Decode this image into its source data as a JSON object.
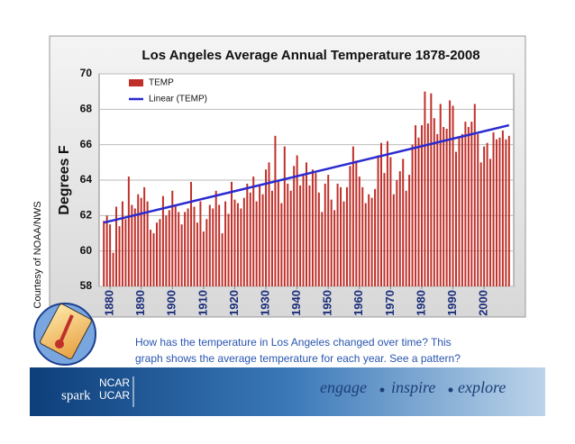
{
  "chart_data": {
    "type": "bar",
    "title": "Los Angeles Average Annual Temperature 1878-2008",
    "y_label": "Degrees F",
    "x": [
      1878,
      1879,
      1880,
      1881,
      1882,
      1883,
      1884,
      1885,
      1886,
      1887,
      1888,
      1889,
      1890,
      1891,
      1892,
      1893,
      1894,
      1895,
      1896,
      1897,
      1898,
      1899,
      1900,
      1901,
      1902,
      1903,
      1904,
      1905,
      1906,
      1907,
      1908,
      1909,
      1910,
      1911,
      1912,
      1913,
      1914,
      1915,
      1916,
      1917,
      1918,
      1919,
      1920,
      1921,
      1922,
      1923,
      1924,
      1925,
      1926,
      1927,
      1928,
      1929,
      1930,
      1931,
      1932,
      1933,
      1934,
      1935,
      1936,
      1937,
      1938,
      1939,
      1940,
      1941,
      1942,
      1943,
      1944,
      1945,
      1946,
      1947,
      1948,
      1949,
      1950,
      1951,
      1952,
      1953,
      1954,
      1955,
      1956,
      1957,
      1958,
      1959,
      1960,
      1961,
      1962,
      1963,
      1964,
      1965,
      1966,
      1967,
      1968,
      1969,
      1970,
      1971,
      1972,
      1973,
      1974,
      1975,
      1976,
      1977,
      1978,
      1979,
      1980,
      1981,
      1982,
      1983,
      1984,
      1985,
      1986,
      1987,
      1988,
      1989,
      1990,
      1991,
      1992,
      1993,
      1994,
      1995,
      1996,
      1997,
      1998,
      1999,
      2000,
      2001,
      2002,
      2003,
      2004,
      2005,
      2006,
      2007,
      2008
    ],
    "series": [
      {
        "name": "TEMP",
        "color": "#c0302a",
        "values": [
          61.7,
          62.0,
          61.5,
          59.9,
          62.5,
          61.4,
          62.8,
          61.8,
          64.2,
          62.6,
          62.4,
          63.2,
          63.0,
          63.6,
          62.8,
          61.2,
          61.0,
          61.6,
          61.8,
          63.1,
          62.0,
          62.3,
          63.4,
          62.6,
          62.2,
          61.5,
          62.2,
          62.4,
          63.9,
          62.5,
          61.6,
          62.8,
          61.1,
          61.8,
          62.6,
          62.4,
          63.4,
          62.6,
          61.0,
          62.8,
          62.1,
          63.9,
          62.9,
          62.7,
          62.4,
          63.0,
          63.8,
          63.3,
          64.2,
          62.8,
          63.7,
          63.2,
          64.6,
          65.0,
          63.4,
          66.5,
          64.0,
          62.7,
          65.9,
          63.8,
          63.4,
          64.8,
          65.4,
          63.7,
          64.3,
          65.0,
          63.7,
          64.6,
          64.4,
          63.3,
          62.2,
          63.8,
          64.3,
          62.9,
          62.3,
          63.8,
          63.6,
          62.8,
          63.6,
          64.8,
          65.9,
          65.1,
          64.2,
          63.6,
          62.7,
          63.2,
          63.0,
          63.5,
          65.4,
          66.1,
          64.4,
          66.2,
          65.3,
          63.2,
          64.0,
          64.5,
          65.2,
          63.4,
          64.3,
          66.0,
          67.1,
          66.4,
          67.1,
          69.0,
          67.2,
          68.9,
          67.5,
          66.6,
          68.3,
          67.0,
          66.9,
          68.5,
          68.2,
          65.6,
          66.4,
          66.6,
          67.3,
          67.0,
          67.3,
          68.3,
          66.6,
          65.0,
          65.9,
          66.1,
          65.2,
          66.7,
          66.3,
          66.4,
          66.8,
          66.3,
          66.5
        ]
      }
    ],
    "trend": {
      "name": "Linear (TEMP)",
      "color": "#2a2ad0",
      "x": [
        1878,
        2008
      ],
      "values": [
        61.6,
        67.1
      ]
    },
    "xlim": [
      1876.5,
      2009.5
    ],
    "xticks": [
      1880,
      1890,
      1900,
      1910,
      1920,
      1930,
      1940,
      1950,
      1960,
      1970,
      1980,
      1990,
      2000
    ],
    "ylim": [
      58,
      70
    ],
    "yticks": [
      58,
      60,
      62,
      64,
      66,
      68,
      70
    ],
    "grid": true
  },
  "slide": {
    "credit": "Courtesy of NOAA/NWS",
    "question": [
      "How has the temperature in Los Angeles changed over time? This",
      "graph shows the average temperature for each year. See a pattern?"
    ],
    "logo": {
      "spark": "spark",
      "ncar": "NCAR",
      "ucar": "UCAR"
    },
    "tagline": [
      "engage",
      "inspire",
      "explore"
    ]
  }
}
